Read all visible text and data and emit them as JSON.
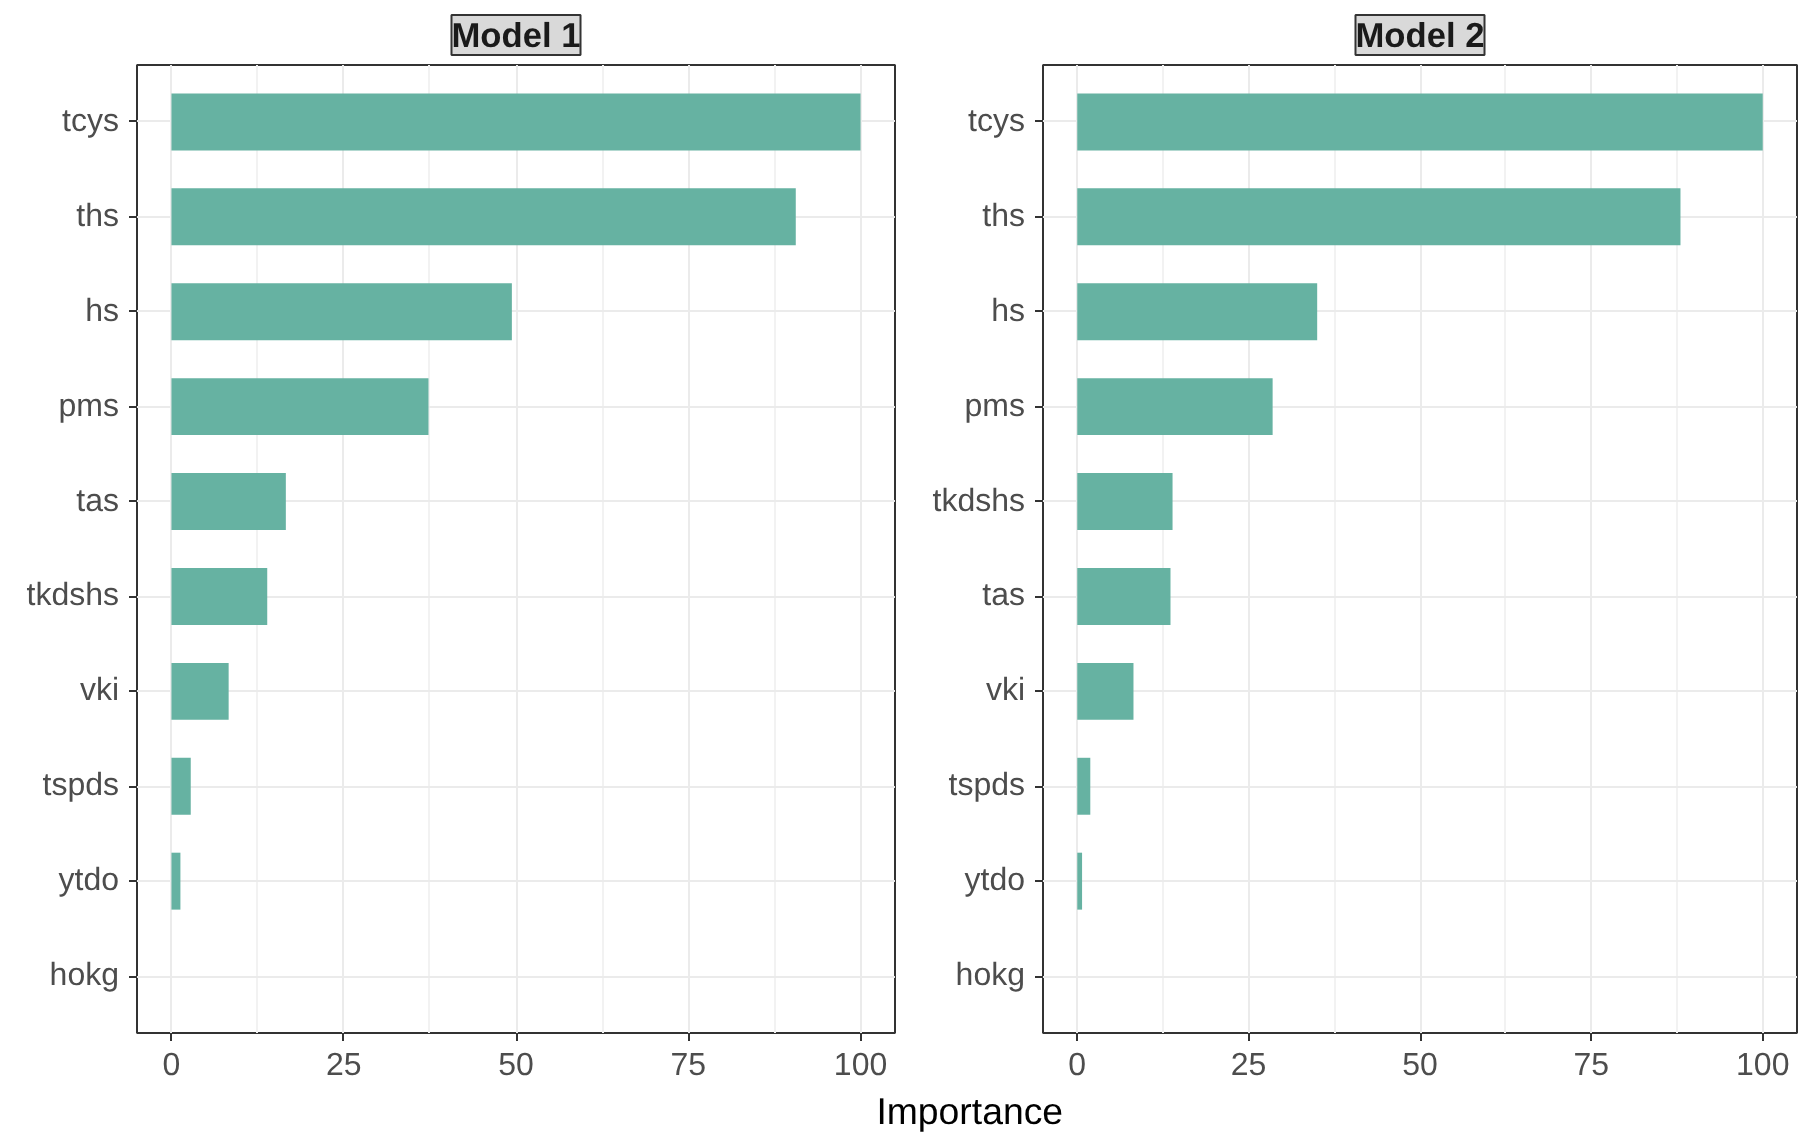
{
  "chart_data": [
    {
      "type": "bar",
      "orientation": "horizontal",
      "title": "Model 1",
      "xlabel": "Importance",
      "categories": [
        "tcys",
        "ths",
        "hs",
        "pms",
        "tas",
        "tkdshs",
        "vki",
        "tspds",
        "ytdo",
        "hokg"
      ],
      "values": [
        100,
        90.6,
        49.4,
        37.3,
        16.6,
        13.9,
        8.3,
        2.8,
        1.3,
        0
      ],
      "color": "#66b2a2",
      "xlim": [
        -5,
        105
      ],
      "xticks": [
        0,
        25,
        50,
        75,
        100
      ],
      "grid": true
    },
    {
      "type": "bar",
      "orientation": "horizontal",
      "title": "Model 2",
      "categories": [
        "tcys",
        "ths",
        "hs",
        "pms",
        "tkdshs",
        "tas",
        "vki",
        "tspds",
        "ytdo",
        "hokg"
      ],
      "values": [
        100,
        88.0,
        35.0,
        28.5,
        13.9,
        13.6,
        8.2,
        1.9,
        0.7,
        0
      ],
      "color": "#66b2a2",
      "xlim": [
        -5,
        105
      ],
      "xticks": [
        0,
        25,
        50,
        75,
        100
      ],
      "grid": true
    }
  ]
}
